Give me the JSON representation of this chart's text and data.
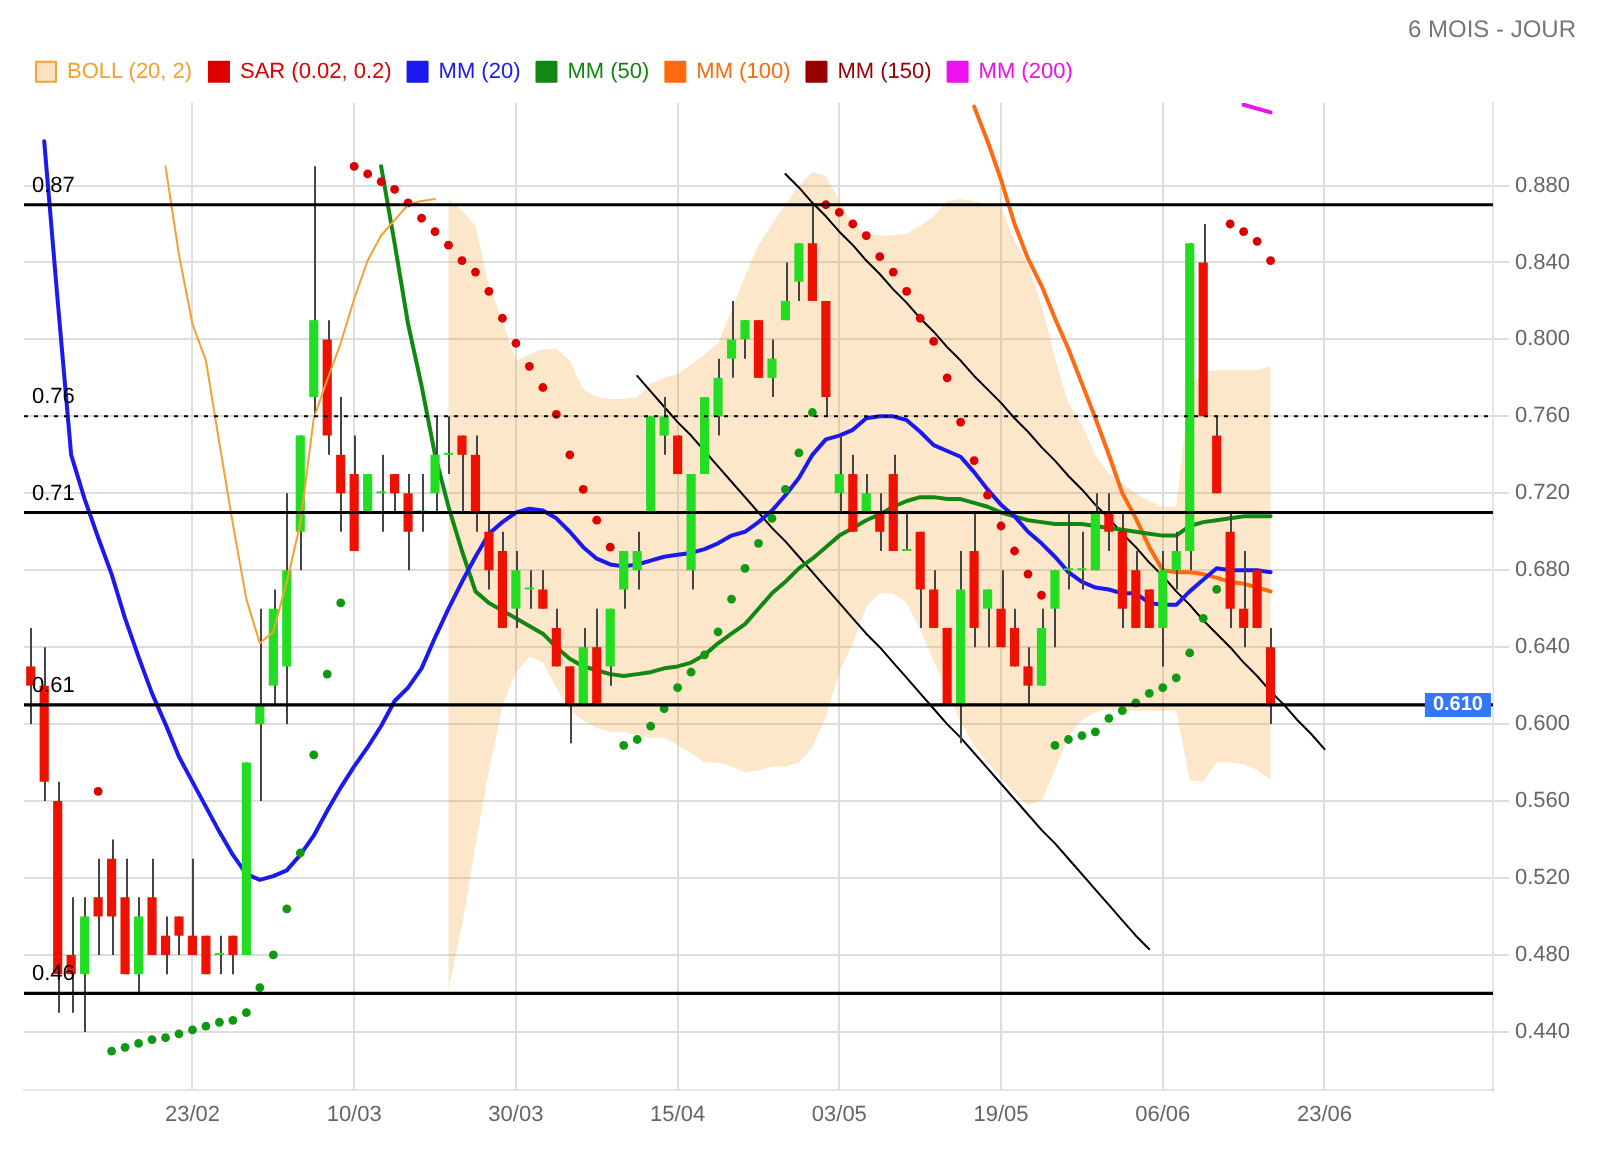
{
  "chart_data": {
    "type": "candlestick",
    "subtitle": "6 MOIS - JOUR",
    "categories": [
      null,
      null,
      null,
      null,
      null,
      null,
      null,
      null,
      null,
      null,
      null,
      null,
      "23/02",
      null,
      null,
      null,
      null,
      null,
      null,
      null,
      null,
      null,
      null,
      null,
      "10/03",
      null,
      null,
      null,
      null,
      null,
      null,
      null,
      null,
      null,
      null,
      null,
      "30/03",
      null,
      null,
      null,
      null,
      null,
      null,
      null,
      null,
      null,
      null,
      null,
      "15/04",
      null,
      null,
      null,
      null,
      null,
      null,
      null,
      null,
      null,
      null,
      null,
      "03/05",
      null,
      null,
      null,
      null,
      null,
      null,
      null,
      null,
      null,
      null,
      null,
      "19/05",
      null,
      null,
      null,
      null,
      null,
      null,
      null,
      null,
      null,
      null,
      null,
      "06/06",
      null,
      null,
      null,
      null,
      null,
      null,
      null,
      null,
      null,
      null,
      null,
      "23/06",
      null,
      null,
      null,
      null,
      null,
      null,
      null,
      null,
      null,
      null,
      null,
      null
    ],
    "ohlc": [
      [
        0.63,
        0.65,
        0.6,
        0.62
      ],
      [
        0.62,
        0.64,
        0.56,
        0.57
      ],
      [
        0.56,
        0.57,
        0.45,
        0.47
      ],
      [
        0.48,
        0.51,
        0.45,
        0.47
      ],
      [
        0.47,
        0.51,
        0.44,
        0.5
      ],
      [
        0.51,
        0.53,
        0.48,
        0.5
      ],
      [
        0.53,
        0.54,
        0.48,
        0.5
      ],
      [
        0.51,
        0.53,
        0.47,
        0.47
      ],
      [
        0.47,
        0.51,
        0.46,
        0.5
      ],
      [
        0.51,
        0.53,
        0.48,
        0.48
      ],
      [
        0.49,
        0.5,
        0.47,
        0.48
      ],
      [
        0.5,
        0.5,
        0.48,
        0.49
      ],
      [
        0.49,
        0.53,
        0.48,
        0.48
      ],
      [
        0.49,
        0.49,
        0.47,
        0.47
      ],
      [
        0.48,
        0.49,
        0.47,
        0.48
      ],
      [
        0.49,
        0.49,
        0.47,
        0.48
      ],
      [
        0.48,
        0.58,
        0.48,
        0.58
      ],
      [
        0.6,
        0.66,
        0.56,
        0.61
      ],
      [
        0.62,
        0.67,
        0.61,
        0.66
      ],
      [
        0.63,
        0.72,
        0.6,
        0.68
      ],
      [
        0.7,
        0.75,
        0.68,
        0.75
      ],
      [
        0.77,
        0.89,
        0.76,
        0.81
      ],
      [
        0.8,
        0.81,
        0.74,
        0.75
      ],
      [
        0.74,
        0.77,
        0.7,
        0.72
      ],
      [
        0.73,
        0.75,
        0.69,
        0.69
      ],
      [
        0.71,
        0.73,
        0.71,
        0.73
      ],
      [
        0.72,
        0.74,
        0.7,
        0.72
      ],
      [
        0.73,
        0.73,
        0.71,
        0.72
      ],
      [
        0.72,
        0.73,
        0.68,
        0.7
      ],
      [
        0.71,
        0.73,
        0.7,
        0.71
      ],
      [
        0.72,
        0.76,
        0.71,
        0.74
      ],
      [
        0.74,
        0.76,
        0.73,
        0.74
      ],
      [
        0.75,
        0.75,
        0.71,
        0.74
      ],
      [
        0.74,
        0.75,
        0.7,
        0.71
      ],
      [
        0.7,
        0.71,
        0.67,
        0.68
      ],
      [
        0.69,
        0.7,
        0.65,
        0.65
      ],
      [
        0.66,
        0.69,
        0.65,
        0.68
      ],
      [
        0.67,
        0.68,
        0.66,
        0.67
      ],
      [
        0.67,
        0.68,
        0.66,
        0.66
      ],
      [
        0.65,
        0.66,
        0.63,
        0.63
      ],
      [
        0.63,
        0.63,
        0.59,
        0.61
      ],
      [
        0.61,
        0.65,
        0.61,
        0.64
      ],
      [
        0.64,
        0.66,
        0.61,
        0.61
      ],
      [
        0.63,
        0.66,
        0.62,
        0.66
      ],
      [
        0.67,
        0.69,
        0.66,
        0.69
      ],
      [
        0.68,
        0.7,
        0.67,
        0.69
      ],
      [
        0.71,
        0.76,
        0.71,
        0.76
      ],
      [
        0.75,
        0.77,
        0.74,
        0.76
      ],
      [
        0.75,
        0.75,
        0.73,
        0.73
      ],
      [
        0.68,
        0.73,
        0.67,
        0.73
      ],
      [
        0.73,
        0.77,
        0.73,
        0.77
      ],
      [
        0.76,
        0.79,
        0.75,
        0.78
      ],
      [
        0.79,
        0.82,
        0.78,
        0.8
      ],
      [
        0.8,
        0.81,
        0.79,
        0.81
      ],
      [
        0.81,
        0.81,
        0.78,
        0.78
      ],
      [
        0.78,
        0.8,
        0.77,
        0.79
      ],
      [
        0.81,
        0.84,
        0.81,
        0.82
      ],
      [
        0.83,
        0.85,
        0.82,
        0.85
      ],
      [
        0.85,
        0.87,
        0.82,
        0.82
      ],
      [
        0.82,
        0.82,
        0.76,
        0.77
      ],
      [
        0.72,
        0.75,
        0.71,
        0.73
      ],
      [
        0.73,
        0.74,
        0.7,
        0.7
      ],
      [
        0.71,
        0.73,
        0.71,
        0.72
      ],
      [
        0.71,
        0.72,
        0.69,
        0.7
      ],
      [
        0.73,
        0.74,
        0.69,
        0.69
      ],
      [
        0.69,
        0.71,
        0.69,
        0.69
      ],
      [
        0.7,
        0.7,
        0.65,
        0.67
      ],
      [
        0.67,
        0.68,
        0.65,
        0.65
      ],
      [
        0.65,
        0.65,
        0.61,
        0.61
      ],
      [
        0.61,
        0.69,
        0.59,
        0.67
      ],
      [
        0.69,
        0.71,
        0.64,
        0.65
      ],
      [
        0.66,
        0.67,
        0.64,
        0.67
      ],
      [
        0.66,
        0.68,
        0.64,
        0.64
      ],
      [
        0.65,
        0.66,
        0.63,
        0.63
      ],
      [
        0.63,
        0.64,
        0.61,
        0.62
      ],
      [
        0.62,
        0.66,
        0.62,
        0.65
      ],
      [
        0.66,
        0.68,
        0.64,
        0.68
      ],
      [
        0.68,
        0.71,
        0.67,
        0.68
      ],
      [
        0.68,
        0.7,
        0.67,
        0.68
      ],
      [
        0.68,
        0.72,
        0.68,
        0.71
      ],
      [
        0.71,
        0.72,
        0.69,
        0.7
      ],
      [
        0.7,
        0.71,
        0.65,
        0.66
      ],
      [
        0.68,
        0.69,
        0.65,
        0.65
      ],
      [
        0.67,
        0.67,
        0.65,
        0.65
      ],
      [
        0.65,
        0.69,
        0.63,
        0.68
      ],
      [
        0.68,
        0.7,
        0.67,
        0.69
      ],
      [
        0.69,
        0.85,
        0.68,
        0.85
      ],
      [
        0.84,
        0.86,
        0.76,
        0.76
      ],
      [
        0.75,
        0.76,
        0.72,
        0.72
      ],
      [
        0.7,
        0.71,
        0.65,
        0.66
      ],
      [
        0.66,
        0.69,
        0.64,
        0.65
      ],
      [
        0.68,
        0.68,
        0.65,
        0.65
      ],
      [
        0.64,
        0.65,
        0.6,
        0.61
      ],
      null,
      null,
      null,
      null,
      null,
      null,
      null,
      null,
      null,
      null,
      null,
      null,
      null,
      null,
      null,
      null
    ],
    "series": [
      {
        "name": "BOLL (20, 2)",
        "type": "line",
        "color": "#f5a030",
        "upper": [
          null,
          null,
          null,
          null,
          null,
          null,
          null,
          null,
          null,
          null,
          null,
          null,
          null,
          null,
          null,
          null,
          null,
          null,
          null,
          null,
          null,
          null,
          null,
          null,
          null,
          null,
          null,
          null,
          null,
          null,
          null,
          0.873,
          0.867,
          0.859,
          0.828,
          0.81,
          0.789,
          0.792,
          0.795,
          0.795,
          0.789,
          0.774,
          0.77,
          0.769,
          0.769,
          0.77,
          0.777,
          0.78,
          0.782,
          0.787,
          0.792,
          0.798,
          0.815,
          0.833,
          0.849,
          0.86,
          0.87,
          0.88,
          0.887,
          0.885,
          0.872,
          0.86,
          0.855,
          0.854,
          0.854,
          0.855,
          0.859,
          0.864,
          0.872,
          0.873,
          0.872,
          0.87,
          0.869,
          0.851,
          0.839,
          0.818,
          0.79,
          0.767,
          0.756,
          0.74,
          0.73,
          0.725,
          0.72,
          0.716,
          0.713,
          0.713,
          0.775,
          0.783,
          0.784,
          0.784,
          0.784,
          0.784,
          0.786,
          null,
          null,
          null,
          null,
          null,
          null,
          null,
          null,
          null,
          null,
          null,
          null,
          null,
          null,
          null,
          null
        ],
        "values": [
          null,
          null,
          null,
          null,
          null,
          null,
          null,
          null,
          null,
          null,
          0.89,
          0.844,
          0.808,
          0.789,
          0.746,
          0.704,
          0.665,
          0.642,
          0.648,
          0.674,
          0.704,
          0.759,
          0.779,
          0.798,
          0.821,
          0.841,
          0.854,
          0.862,
          0.87,
          0.872,
          0.873,
          null,
          null,
          null,
          null,
          null,
          null,
          null,
          null,
          null,
          null,
          null,
          null,
          null,
          null,
          null,
          null,
          null,
          null,
          null,
          null,
          null,
          null,
          null,
          null,
          null,
          null,
          null,
          null,
          null,
          null,
          null,
          null,
          null,
          null,
          null,
          null,
          null,
          null,
          null,
          null,
          null,
          null,
          null,
          null,
          null,
          null,
          null,
          null,
          null,
          null,
          null,
          null,
          null,
          null,
          null,
          null,
          null,
          null,
          null,
          null,
          null,
          null,
          null,
          null,
          null,
          null,
          null,
          null,
          null,
          null,
          null,
          null,
          null,
          null,
          null,
          null,
          null,
          null
        ],
        "lower": [
          null,
          null,
          null,
          null,
          null,
          null,
          null,
          null,
          null,
          null,
          null,
          null,
          null,
          null,
          null,
          null,
          null,
          null,
          null,
          null,
          null,
          null,
          null,
          null,
          null,
          null,
          null,
          null,
          null,
          null,
          null,
          0.462,
          0.495,
          0.537,
          0.576,
          0.609,
          0.627,
          0.635,
          0.632,
          0.619,
          0.607,
          0.602,
          0.598,
          0.596,
          0.596,
          0.594,
          0.593,
          0.593,
          0.589,
          0.585,
          0.58,
          0.58,
          0.578,
          0.575,
          0.576,
          0.578,
          0.578,
          0.58,
          0.588,
          0.604,
          0.627,
          0.642,
          0.661,
          0.668,
          0.668,
          0.663,
          0.649,
          0.633,
          0.617,
          0.601,
          0.589,
          0.58,
          0.572,
          0.564,
          0.558,
          0.56,
          0.576,
          0.594,
          0.602,
          0.606,
          0.608,
          0.607,
          0.607,
          0.607,
          0.607,
          0.607,
          0.571,
          0.57,
          0.58,
          0.58,
          0.579,
          0.576,
          0.571,
          null,
          null,
          null,
          null,
          null,
          null,
          null,
          null,
          null,
          null,
          null,
          null,
          null,
          null,
          null,
          null
        ]
      },
      {
        "name": "SAR (0.02, 0.2)",
        "type": "scatter",
        "marker": "circle",
        "color": "#dd0000",
        "values": [
          null,
          null,
          null,
          null,
          null,
          0.565,
          0.43,
          0.432,
          0.434,
          0.436,
          0.437,
          0.439,
          0.441,
          0.443,
          0.445,
          0.446,
          0.45,
          0.463,
          0.48,
          0.504,
          0.533,
          0.584,
          0.626,
          0.663,
          0.89,
          0.886,
          0.882,
          0.878,
          0.871,
          0.863,
          0.856,
          0.849,
          0.841,
          0.835,
          0.825,
          0.811,
          0.798,
          0.786,
          0.775,
          0.761,
          0.74,
          0.722,
          0.706,
          0.692,
          0.589,
          0.592,
          0.599,
          0.608,
          0.619,
          0.627,
          0.636,
          0.648,
          0.665,
          0.681,
          0.694,
          0.707,
          0.722,
          0.741,
          0.762,
          0.87,
          0.866,
          0.86,
          0.854,
          0.843,
          0.835,
          0.825,
          0.811,
          0.799,
          0.78,
          0.757,
          0.737,
          0.719,
          0.703,
          0.69,
          0.678,
          0.667,
          0.589,
          0.592,
          0.594,
          0.596,
          0.603,
          0.607,
          0.611,
          0.616,
          0.619,
          0.624,
          0.637,
          0.655,
          0.67,
          0.86,
          0.856,
          0.851,
          0.841,
          null,
          null,
          null,
          null,
          null,
          null,
          null,
          null,
          null,
          null,
          null,
          null,
          null,
          null,
          null,
          null
        ],
        "colors": [
          null,
          null,
          null,
          null,
          null,
          "#dd0000",
          "#119911",
          "#119911",
          "#119911",
          "#119911",
          "#119911",
          "#119911",
          "#119911",
          "#119911",
          "#119911",
          "#119911",
          "#119911",
          "#119911",
          "#119911",
          "#119911",
          "#119911",
          "#119911",
          "#119911",
          "#119911",
          "#dd0000",
          "#dd0000",
          "#dd0000",
          "#dd0000",
          "#dd0000",
          "#dd0000",
          "#dd0000",
          "#dd0000",
          "#dd0000",
          "#dd0000",
          "#dd0000",
          "#dd0000",
          "#dd0000",
          "#dd0000",
          "#dd0000",
          "#dd0000",
          "#dd0000",
          "#dd0000",
          "#dd0000",
          "#dd0000",
          "#119911",
          "#119911",
          "#119911",
          "#119911",
          "#119911",
          "#119911",
          "#119911",
          "#119911",
          "#119911",
          "#119911",
          "#119911",
          "#119911",
          "#119911",
          "#119911",
          "#119911",
          "#dd0000",
          "#dd0000",
          "#dd0000",
          "#dd0000",
          "#dd0000",
          "#dd0000",
          "#dd0000",
          "#dd0000",
          "#dd0000",
          "#dd0000",
          "#dd0000",
          "#dd0000",
          "#dd0000",
          "#dd0000",
          "#dd0000",
          "#dd0000",
          "#dd0000",
          "#119911",
          "#119911",
          "#119911",
          "#119911",
          "#119911",
          "#119911",
          "#119911",
          "#119911",
          "#119911",
          "#119911",
          "#119911",
          "#119911",
          "#119911",
          "#dd0000",
          "#dd0000",
          "#dd0000",
          "#dd0000",
          null,
          null,
          null,
          null,
          null,
          null,
          null,
          null,
          null,
          null,
          null,
          null,
          null,
          null,
          null,
          null
        ]
      },
      {
        "name": "MM (20)",
        "type": "line",
        "color": "#1a1aee",
        "values": [
          null,
          0.903,
          0.82,
          0.74,
          0.717,
          0.697,
          0.678,
          0.655,
          0.635,
          0.616,
          0.6,
          0.583,
          0.57,
          0.557,
          0.544,
          0.532,
          0.522,
          0.519,
          0.521,
          0.524,
          0.532,
          0.542,
          0.555,
          0.567,
          0.578,
          0.588,
          0.599,
          0.612,
          0.619,
          0.629,
          0.645,
          0.66,
          0.674,
          0.687,
          0.699,
          0.705,
          0.71,
          0.712,
          0.711,
          0.707,
          0.7,
          0.692,
          0.686,
          0.683,
          0.682,
          0.683,
          0.685,
          0.687,
          0.688,
          0.689,
          0.691,
          0.694,
          0.698,
          0.7,
          0.705,
          0.711,
          0.719,
          0.728,
          0.74,
          0.748,
          0.75,
          0.753,
          0.759,
          0.76,
          0.76,
          0.758,
          0.752,
          0.745,
          0.742,
          0.739,
          0.731,
          0.722,
          0.714,
          0.708,
          0.7,
          0.694,
          0.687,
          0.679,
          0.674,
          0.671,
          0.67,
          0.668,
          0.668,
          0.663,
          0.662,
          0.662,
          0.669,
          0.675,
          0.681,
          0.68,
          0.68,
          0.68,
          0.679,
          null,
          null,
          null,
          null,
          null,
          null,
          null,
          null,
          null,
          null,
          null,
          null,
          null,
          null,
          null,
          null
        ]
      },
      {
        "name": "MM (50)",
        "type": "line",
        "color": "#118811",
        "values": [
          null,
          null,
          null,
          null,
          null,
          null,
          null,
          null,
          null,
          null,
          null,
          null,
          null,
          null,
          null,
          null,
          null,
          null,
          null,
          null,
          null,
          null,
          null,
          null,
          null,
          null,
          0.89,
          0.85,
          0.808,
          0.776,
          0.74,
          0.713,
          0.69,
          0.669,
          0.663,
          0.659,
          0.655,
          0.651,
          0.647,
          0.64,
          0.634,
          0.63,
          0.628,
          0.626,
          0.625,
          0.626,
          0.627,
          0.629,
          0.63,
          0.632,
          0.636,
          0.642,
          0.647,
          0.652,
          0.66,
          0.668,
          0.674,
          0.681,
          0.686,
          0.692,
          0.698,
          0.702,
          0.706,
          0.709,
          0.713,
          0.716,
          0.718,
          0.718,
          0.717,
          0.717,
          0.715,
          0.713,
          0.71,
          0.708,
          0.706,
          0.705,
          0.704,
          0.704,
          0.704,
          0.703,
          0.702,
          0.701,
          0.7,
          0.699,
          0.698,
          0.698,
          0.703,
          0.705,
          0.706,
          0.707,
          0.708,
          0.708,
          0.708,
          null,
          null,
          null,
          null,
          null,
          null,
          null,
          null,
          null,
          null,
          null,
          null,
          null,
          null,
          null,
          null
        ]
      },
      {
        "name": "MM (100)",
        "type": "line",
        "color": "#ff6a10",
        "values": [
          null,
          null,
          null,
          null,
          null,
          null,
          null,
          null,
          null,
          null,
          null,
          null,
          null,
          null,
          null,
          null,
          null,
          null,
          null,
          null,
          null,
          null,
          null,
          null,
          null,
          null,
          null,
          null,
          null,
          null,
          null,
          null,
          null,
          null,
          null,
          null,
          null,
          null,
          null,
          null,
          null,
          null,
          null,
          null,
          null,
          null,
          null,
          null,
          null,
          null,
          null,
          null,
          null,
          null,
          null,
          null,
          null,
          null,
          null,
          null,
          null,
          null,
          null,
          null,
          null,
          null,
          null,
          null,
          null,
          null,
          0.921,
          0.903,
          0.883,
          0.86,
          0.842,
          0.828,
          0.811,
          0.795,
          0.777,
          0.759,
          0.74,
          0.72,
          0.707,
          0.692,
          0.68,
          0.679,
          0.679,
          0.678,
          0.676,
          0.674,
          0.673,
          0.671,
          0.669,
          null,
          null,
          null,
          null,
          null,
          null,
          null,
          null,
          null,
          null,
          null,
          null,
          null,
          null,
          null,
          null
        ]
      },
      {
        "name": "MM (150)",
        "type": "line",
        "color": "#990000",
        "values": [
          null,
          null,
          null,
          null,
          null,
          null,
          null,
          null,
          null,
          null,
          null,
          null,
          null,
          null,
          null,
          null,
          null,
          null,
          null,
          null,
          null,
          null,
          null,
          null,
          null,
          null,
          null,
          null,
          null,
          null,
          null,
          null,
          null,
          null,
          null,
          null,
          null,
          null,
          null,
          null,
          null,
          null,
          null,
          null,
          null,
          null,
          null,
          null,
          null,
          null,
          null,
          null,
          null,
          null,
          null,
          null,
          null,
          null,
          null,
          null,
          null,
          null,
          null,
          null,
          null,
          null,
          null,
          null,
          null,
          null,
          null,
          null,
          null,
          null,
          null,
          null,
          null,
          null,
          null,
          null,
          null,
          null,
          null,
          null,
          null,
          null,
          null,
          null,
          null,
          null,
          null,
          null,
          null,
          null,
          null,
          null,
          null,
          null,
          null,
          null,
          null,
          null,
          null,
          null,
          null,
          null,
          null,
          null,
          null
        ]
      },
      {
        "name": "MM (200)",
        "type": "line",
        "color": "#ee11ee",
        "values": [
          null,
          null,
          null,
          null,
          null,
          null,
          null,
          null,
          null,
          null,
          null,
          null,
          null,
          null,
          null,
          null,
          null,
          null,
          null,
          null,
          null,
          null,
          null,
          null,
          null,
          null,
          null,
          null,
          null,
          null,
          null,
          null,
          null,
          null,
          null,
          null,
          null,
          null,
          null,
          null,
          null,
          null,
          null,
          null,
          null,
          null,
          null,
          null,
          null,
          null,
          null,
          null,
          null,
          null,
          null,
          null,
          null,
          null,
          null,
          null,
          null,
          null,
          null,
          null,
          null,
          null,
          null,
          null,
          null,
          null,
          null,
          null,
          null,
          null,
          null,
          null,
          null,
          null,
          null,
          null,
          null,
          null,
          null,
          null,
          null,
          null,
          null,
          null,
          null,
          null,
          0.922,
          0.92,
          0.918,
          null,
          null,
          null,
          null,
          null,
          null,
          null,
          null,
          null,
          null,
          null,
          null,
          null,
          null,
          null,
          null
        ]
      },
      {
        "type": "line",
        "color": "#000000",
        "values": [
          null,
          null,
          null,
          null,
          null,
          null,
          null,
          null,
          null,
          null,
          null,
          null,
          null,
          null,
          null,
          null,
          null,
          null,
          null,
          null,
          null,
          null,
          null,
          null,
          null,
          null,
          null,
          null,
          null,
          null,
          null,
          null,
          null,
          null,
          null,
          null,
          null,
          null,
          null,
          null,
          null,
          null,
          null,
          null,
          null,
          0.781,
          0.773,
          0.765,
          0.757,
          0.75,
          0.742,
          0.734,
          0.726,
          0.718,
          0.71,
          0.702,
          0.695,
          0.687,
          0.679,
          0.671,
          0.663,
          0.655,
          0.647,
          0.64,
          0.632,
          0.624,
          0.616,
          0.608,
          0.6,
          0.593,
          0.585,
          0.577,
          0.569,
          0.561,
          0.553,
          0.545,
          0.538,
          0.53,
          0.522,
          0.514,
          0.506,
          0.498,
          0.49,
          0.483,
          null,
          null,
          null,
          null,
          null,
          null,
          null,
          null,
          null,
          null,
          null,
          null,
          null,
          null,
          null,
          null,
          null,
          null,
          null,
          null,
          null,
          null,
          null,
          null,
          null
        ]
      },
      {
        "type": "line",
        "color": "#000000",
        "values": [
          null,
          null,
          null,
          null,
          null,
          null,
          null,
          null,
          null,
          null,
          null,
          null,
          null,
          null,
          null,
          null,
          null,
          null,
          null,
          null,
          null,
          null,
          null,
          null,
          null,
          null,
          null,
          null,
          null,
          null,
          null,
          null,
          null,
          null,
          null,
          null,
          null,
          null,
          null,
          null,
          null,
          null,
          null,
          null,
          null,
          null,
          null,
          null,
          null,
          null,
          null,
          null,
          null,
          null,
          null,
          null,
          0.886,
          0.879,
          0.871,
          0.864,
          0.856,
          0.849,
          0.841,
          0.834,
          0.826,
          0.819,
          0.811,
          0.804,
          0.796,
          0.789,
          0.781,
          0.774,
          0.767,
          0.759,
          0.752,
          0.744,
          0.737,
          0.729,
          0.722,
          0.714,
          0.707,
          0.699,
          0.692,
          0.684,
          0.677,
          0.669,
          0.662,
          0.654,
          0.647,
          0.64,
          0.632,
          0.625,
          0.617,
          0.61,
          0.602,
          0.595,
          0.587,
          null,
          null,
          null,
          null,
          null,
          null,
          null,
          null,
          null,
          null,
          null,
          null
        ]
      }
    ],
    "ylim": [
      0.41,
      0.923
    ],
    "yticks": [
      {
        "value": 0.44,
        "label": "0.440"
      },
      {
        "value": 0.48,
        "label": "0.480"
      },
      {
        "value": 0.52,
        "label": "0.520"
      },
      {
        "value": 0.56,
        "label": "0.560"
      },
      {
        "value": 0.6,
        "label": "0.600"
      },
      {
        "value": 0.64,
        "label": "0.640"
      },
      {
        "value": 0.68,
        "label": "0.680"
      },
      {
        "value": 0.72,
        "label": "0.720"
      },
      {
        "value": 0.76,
        "label": "0.760"
      },
      {
        "value": 0.8,
        "label": "0.800"
      },
      {
        "value": 0.84,
        "label": "0.840"
      },
      {
        "value": 0.88,
        "label": "0.880"
      }
    ],
    "grid": true,
    "legend": "top left",
    "ref_lines": [
      {
        "axis": "y",
        "value": 0.87,
        "label": "0.87",
        "color": "#000000"
      },
      {
        "axis": "y",
        "value": 0.76,
        "label": "0.76",
        "color": "#000000",
        "line_style": "dotted"
      },
      {
        "axis": "y",
        "value": 0.71,
        "label": "0.71",
        "color": "#000000"
      },
      {
        "axis": "y",
        "value": 0.61,
        "label": "0.61",
        "color": "#000000"
      },
      {
        "axis": "y",
        "value": 0.46,
        "label": "0.46",
        "color": "#000000"
      }
    ],
    "annotations": [
      {
        "text": "0.610",
        "y": 0.61
      }
    ]
  }
}
